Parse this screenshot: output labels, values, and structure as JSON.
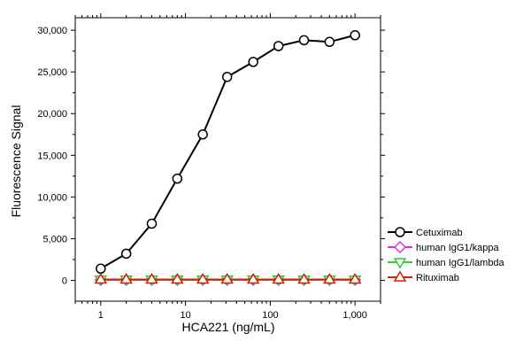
{
  "chart_data": {
    "type": "line",
    "xlabel": "HCA221 (ng/mL)",
    "ylabel": "Fluorescence Signal",
    "xscale": "log",
    "xlim": [
      0.5,
      2000
    ],
    "ylim": [
      -2500,
      31500
    ],
    "x_ticks": [
      1,
      10,
      100,
      1000
    ],
    "x_tick_labels": [
      "1",
      "10",
      "100",
      "1,000"
    ],
    "y_ticks": [
      0,
      5000,
      10000,
      15000,
      20000,
      25000,
      30000
    ],
    "y_tick_labels": [
      "0",
      "5,000",
      "10,000",
      "15,000",
      "20,000",
      "25,000",
      "30,000"
    ],
    "grid": false,
    "legend_position": "right",
    "x": [
      1,
      2,
      4,
      8,
      16,
      31,
      63,
      125,
      250,
      500,
      1000
    ],
    "series": [
      {
        "name": "Cetuximab",
        "color": "#000000",
        "marker": "circle",
        "values": [
          1400,
          3200,
          6800,
          12200,
          17500,
          24400,
          26200,
          28100,
          28800,
          28600,
          29400
        ]
      },
      {
        "name": "human IgG1/kappa",
        "color": "#e030e0",
        "marker": "diamond",
        "values": [
          60,
          60,
          60,
          60,
          60,
          60,
          60,
          60,
          60,
          60,
          60
        ]
      },
      {
        "name": "human IgG1/lambda",
        "color": "#33cc33",
        "marker": "triangle-down",
        "values": [
          80,
          80,
          80,
          80,
          80,
          80,
          80,
          80,
          80,
          80,
          80
        ]
      },
      {
        "name": "Rituximab",
        "color": "#cc2200",
        "marker": "triangle-up",
        "values": [
          100,
          100,
          100,
          100,
          100,
          100,
          100,
          100,
          100,
          100,
          100
        ]
      }
    ]
  }
}
